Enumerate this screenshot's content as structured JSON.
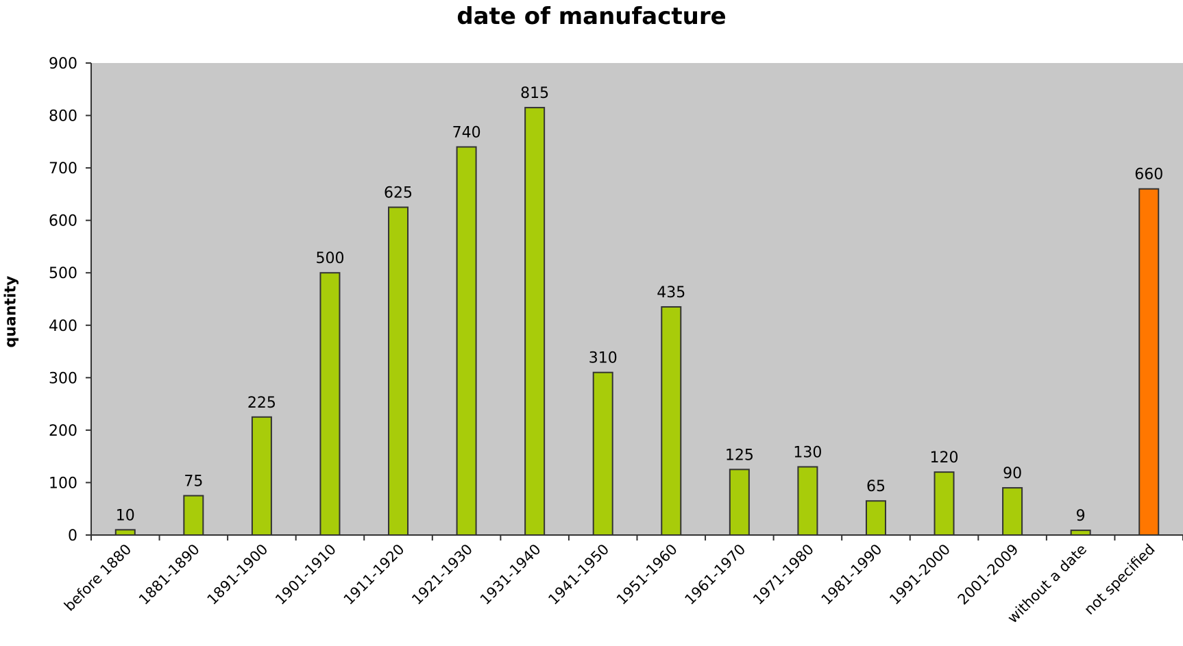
{
  "chart_data": {
    "type": "bar",
    "title": "date of manufacture",
    "xlabel": "",
    "ylabel": "quantity",
    "ylim": [
      0,
      900
    ],
    "yticks": [
      0,
      100,
      200,
      300,
      400,
      500,
      600,
      700,
      800,
      900
    ],
    "grid": false,
    "legend": "none",
    "categories": [
      "before 1880",
      "1881-1890",
      "1891-1900",
      "1901-1910",
      "1911-1920",
      "1921-1930",
      "1931-1940",
      "1941-1950",
      "1951-1960",
      "1961-1970",
      "1971-1980",
      "1981-1990",
      "1991-2000",
      "2001-2009",
      "without a date",
      "not specified"
    ],
    "values": [
      10,
      75,
      225,
      500,
      625,
      740,
      815,
      310,
      435,
      125,
      130,
      65,
      120,
      90,
      9,
      660
    ],
    "data_labels": [
      "10",
      "75",
      "225",
      "500",
      "625",
      "740",
      "815",
      "310",
      "435",
      "125",
      "130",
      "65",
      "120",
      "90",
      "9",
      "660"
    ],
    "colors": {
      "plot_background": "#c8c8c8",
      "bar_default": "#a8cc0a",
      "bar_highlight": "#ff7700",
      "bar_outline": "#333333"
    },
    "highlight_category": "not specified"
  }
}
